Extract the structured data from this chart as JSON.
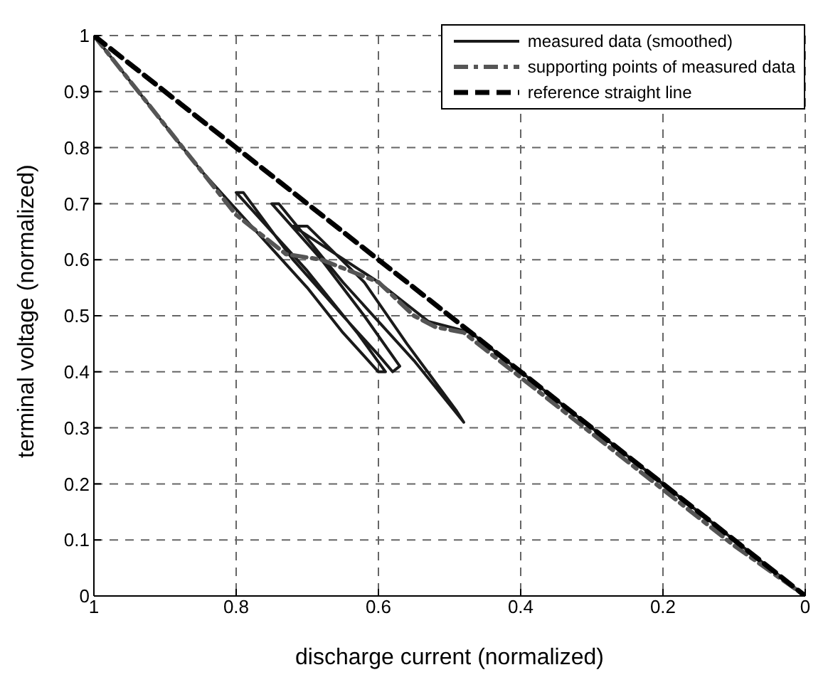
{
  "chart_data": {
    "type": "line",
    "xlabel": "discharge current (normalized)",
    "ylabel": "terminal voltage (normalized)",
    "xlim": [
      1,
      0
    ],
    "xticks": [
      1,
      0.8,
      0.6,
      0.4,
      0.2,
      0
    ],
    "ylim": [
      0,
      1
    ],
    "yticks": [
      0,
      0.1,
      0.2,
      0.3,
      0.4,
      0.5,
      0.6,
      0.7,
      0.8,
      0.9,
      1
    ],
    "grid": true,
    "legend": "top right",
    "marker": "none",
    "series": [
      {
        "name": "measured data (smoothed)",
        "color": "#1a1a1a",
        "line_style": "solid",
        "x": [
          1,
          0.95,
          0.9,
          0.85,
          0.8,
          0.75,
          0.7,
          0.65,
          0.6,
          0.59,
          0.63,
          0.7,
          0.8,
          0.79,
          0.72,
          0.65,
          0.6,
          0.58,
          0.57,
          0.62,
          0.68,
          0.75,
          0.74,
          0.65,
          0.55,
          0.48,
          0.49,
          0.56,
          0.62,
          0.7,
          0.72,
          0.6,
          0.53,
          0.5,
          0.47,
          0.4,
          0.3,
          0.2,
          0.1,
          0
        ],
        "values": [
          1,
          0.92,
          0.84,
          0.76,
          0.69,
          0.62,
          0.55,
          0.47,
          0.4,
          0.4,
          0.47,
          0.58,
          0.72,
          0.72,
          0.6,
          0.5,
          0.43,
          0.4,
          0.41,
          0.5,
          0.6,
          0.7,
          0.7,
          0.56,
          0.42,
          0.31,
          0.33,
          0.45,
          0.56,
          0.66,
          0.66,
          0.56,
          0.49,
          0.48,
          0.47,
          0.4,
          0.3,
          0.2,
          0.1,
          0
        ]
      },
      {
        "name": "supporting points of measured data",
        "color": "#555555",
        "line_style": "dashdot",
        "x": [
          1,
          0.9,
          0.8,
          0.73,
          0.68,
          0.6,
          0.55,
          0.52,
          0.48,
          0.4,
          0.3,
          0.2,
          0.1,
          0
        ],
        "values": [
          1,
          0.84,
          0.68,
          0.61,
          0.6,
          0.56,
          0.5,
          0.48,
          0.47,
          0.39,
          0.29,
          0.19,
          0.09,
          0
        ]
      },
      {
        "name": "reference straight line",
        "color": "#000000",
        "line_style": "dashed",
        "x": [
          1,
          0
        ],
        "values": [
          1,
          0
        ]
      }
    ]
  }
}
